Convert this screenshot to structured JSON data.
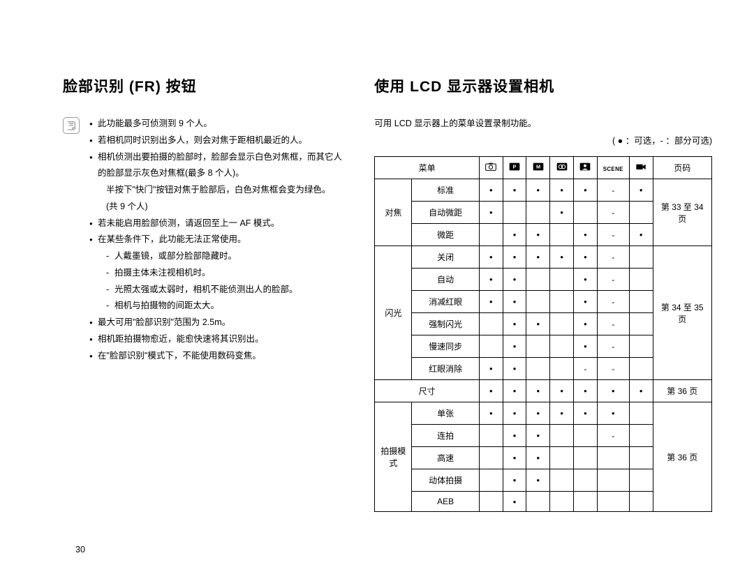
{
  "left": {
    "heading": "脸部识别 (FR) 按钮",
    "bullets": [
      {
        "text": "此功能最多可侦测到 9 个人。"
      },
      {
        "text": "若相机同时识别出多人，则会对焦于距相机最近的人。"
      },
      {
        "text": "相机侦测出要拍摄的脸部时，脸部会显示白色对焦框，而其它人的脸部显示灰色对焦框(最多 8 个人)。",
        "extra": [
          "半按下\"快门\"按钮对焦于脸部后，白色对焦框会变为绿色。",
          "(共 9 个人)"
        ]
      },
      {
        "text": "若未能启用脸部侦测，请返回至上一 AF 模式。"
      },
      {
        "text": "在某些条件下，此功能无法正常使用。",
        "sub": [
          "人戴墨镜，或部分脸部隐藏时。",
          "拍摄主体未注视相机时。",
          "光照太强或太弱时，相机不能侦测出人的脸部。",
          "相机与拍摄物的间距太大。"
        ]
      },
      {
        "text": "最大可用\"脸部识别\"范围为 2.5m。"
      },
      {
        "text": "相机距拍摄物愈近，能愈快速将其识别出。"
      },
      {
        "text": "在\"脸部识别\"模式下，不能使用数码变焦。"
      }
    ]
  },
  "right": {
    "heading": "使用 LCD 显示器设置相机",
    "intro": "可用 LCD 显示器上的菜单设置录制功能。",
    "legend": "( ● ：可选，- ：部分可选)",
    "header": {
      "menu": "菜单",
      "page": "页码"
    },
    "modes": [
      "auto",
      "program",
      "manual",
      "dual",
      "portrait",
      "scene",
      "movie"
    ],
    "groups": [
      {
        "label": "对焦",
        "page": "第 33 至 34 页",
        "rows": [
          {
            "name": "标准",
            "cells": [
              "●",
              "●",
              "●",
              "●",
              "●",
              "-",
              "●"
            ]
          },
          {
            "name": "自动微距",
            "cells": [
              "●",
              "",
              "",
              "●",
              "",
              "-",
              ""
            ]
          },
          {
            "name": "微距",
            "cells": [
              "",
              "●",
              "●",
              "",
              "●",
              "-",
              "●"
            ]
          }
        ]
      },
      {
        "label": "闪光",
        "page": "第 34 至 35 页",
        "rows": [
          {
            "name": "关闭",
            "cells": [
              "●",
              "●",
              "●",
              "●",
              "●",
              "-",
              ""
            ]
          },
          {
            "name": "自动",
            "cells": [
              "●",
              "●",
              "",
              "",
              "●",
              "-",
              ""
            ]
          },
          {
            "name": "消减红眼",
            "cells": [
              "●",
              "●",
              "",
              "",
              "●",
              "-",
              ""
            ]
          },
          {
            "name": "强制闪光",
            "cells": [
              "",
              "●",
              "●",
              "",
              "●",
              "-",
              ""
            ]
          },
          {
            "name": "慢速同步",
            "cells": [
              "",
              "●",
              "",
              "",
              "●",
              "-",
              ""
            ]
          },
          {
            "name": "红眼消除",
            "cells": [
              "●",
              "●",
              "",
              "",
              "-",
              "-",
              ""
            ]
          }
        ]
      },
      {
        "label": "尺寸",
        "span": true,
        "page": "第 36 页",
        "rows": [
          {
            "name": "",
            "cells": [
              "●",
              "●",
              "●",
              "●",
              "●",
              "●",
              "●"
            ]
          }
        ]
      },
      {
        "label": "拍摄模式",
        "page": "第 36 页",
        "rows": [
          {
            "name": "单张",
            "cells": [
              "●",
              "●",
              "●",
              "●",
              "●",
              "●",
              ""
            ]
          },
          {
            "name": "连拍",
            "cells": [
              "",
              "●",
              "●",
              "",
              "",
              "-",
              ""
            ]
          },
          {
            "name": "高速",
            "cells": [
              "",
              "●",
              "●",
              "",
              "",
              "",
              ""
            ]
          },
          {
            "name": "动体拍摄",
            "cells": [
              "",
              "●",
              "●",
              "",
              "",
              "",
              ""
            ]
          },
          {
            "name": "AEB",
            "cells": [
              "",
              "●",
              "",
              "",
              "",
              "",
              ""
            ]
          }
        ]
      }
    ]
  },
  "pageNumber": "30"
}
